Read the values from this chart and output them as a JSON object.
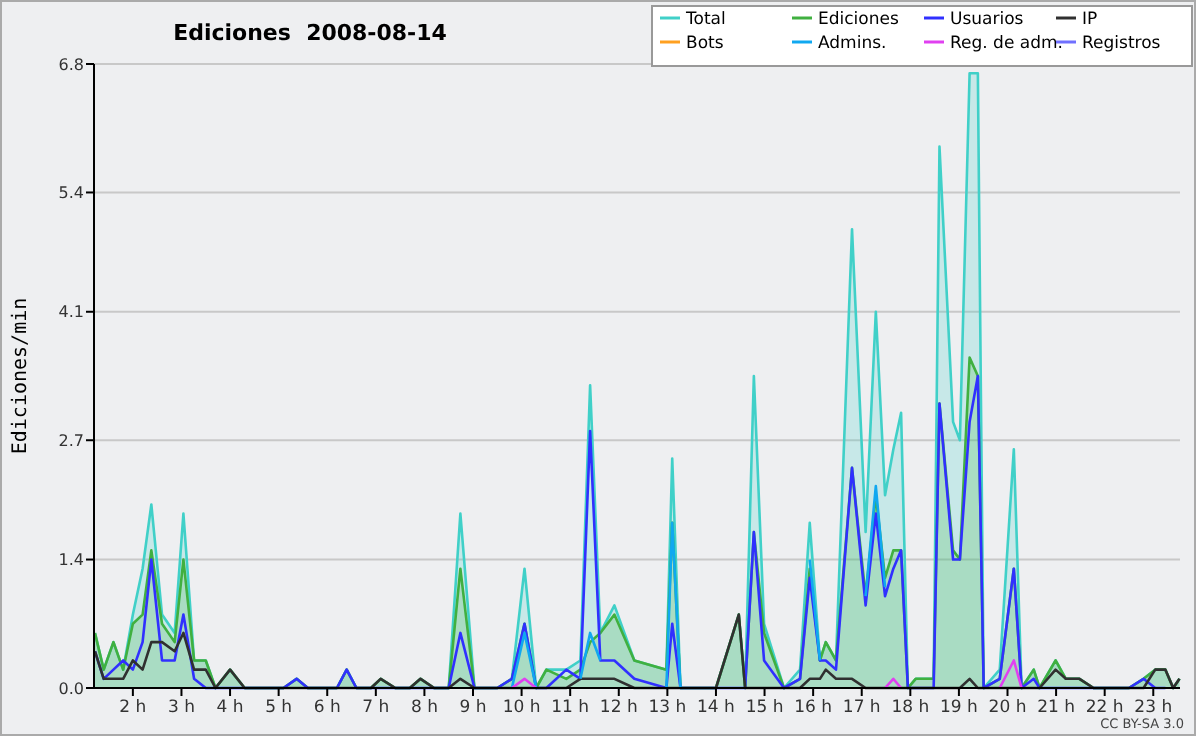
{
  "chart_data": {
    "type": "line",
    "title": "Ediciones  2008-08-14",
    "ylabel": "Ediciones/min",
    "x": [
      1.22,
      1.4,
      1.6,
      1.8,
      2.0,
      2.2,
      2.38,
      2.6,
      2.86,
      3.04,
      3.26,
      3.5,
      3.7,
      4.0,
      4.3,
      5.1,
      5.37,
      5.6,
      6.2,
      6.4,
      6.6,
      6.9,
      7.1,
      7.4,
      7.7,
      7.92,
      8.2,
      8.5,
      8.74,
      9.03,
      9.5,
      9.8,
      10.06,
      10.3,
      10.51,
      10.92,
      11.21,
      11.41,
      11.62,
      11.91,
      12.32,
      12.98,
      13.1,
      13.27,
      14.0,
      14.47,
      14.6,
      14.78,
      14.99,
      15.4,
      15.73,
      15.93,
      16.14,
      16.26,
      16.47,
      16.8,
      17.08,
      17.29,
      17.48,
      17.65,
      17.81,
      17.95,
      18.11,
      18.48,
      18.6,
      18.88,
      19.02,
      19.22,
      19.39,
      19.51,
      19.84,
      20.13,
      20.29,
      20.54,
      20.66,
      20.99,
      21.2,
      21.48,
      21.77,
      22.5,
      22.8,
      23.04,
      23.25,
      23.41,
      23.54
    ],
    "series": [
      {
        "name": "Total",
        "type": "area",
        "color": "#40d0c8",
        "values": [
          0.6,
          0.2,
          0.5,
          0.2,
          0.8,
          1.3,
          2.0,
          0.8,
          0.6,
          1.9,
          0.3,
          0.3,
          0,
          0.2,
          0,
          0,
          0.1,
          0,
          0,
          0.2,
          0,
          0,
          0.1,
          0,
          0,
          0.1,
          0,
          0,
          1.9,
          0,
          0,
          0.1,
          1.3,
          0,
          0.2,
          0.2,
          0.3,
          3.3,
          0.6,
          0.9,
          0.3,
          0.2,
          2.5,
          0,
          0,
          0.8,
          0,
          3.4,
          0.7,
          0,
          0.2,
          1.8,
          0.3,
          0.5,
          0.3,
          5.0,
          1.7,
          4.1,
          2.1,
          2.6,
          3.0,
          0,
          0.1,
          0.1,
          5.9,
          2.9,
          2.7,
          6.7,
          6.7,
          0,
          0.2,
          2.6,
          0,
          0.2,
          0,
          0.3,
          0.1,
          0.1,
          0,
          0,
          0.1,
          0.2,
          0.2,
          0,
          0.1
        ]
      },
      {
        "name": "Ediciones",
        "type": "area",
        "color": "#40b040",
        "values": [
          0.6,
          0.2,
          0.5,
          0.2,
          0.7,
          0.8,
          1.5,
          0.7,
          0.5,
          1.4,
          0.3,
          0.3,
          0,
          0.2,
          0,
          0,
          0.1,
          0,
          0,
          0.2,
          0,
          0,
          0.1,
          0,
          0,
          0.1,
          0,
          0,
          1.3,
          0,
          0,
          0.1,
          0.7,
          0,
          0.2,
          0.1,
          0.2,
          0.5,
          0.6,
          0.8,
          0.3,
          0.2,
          1.8,
          0,
          0,
          0.8,
          0,
          1.7,
          0.6,
          0,
          0.1,
          1.3,
          0.3,
          0.5,
          0.3,
          2.4,
          1.0,
          2.1,
          1.2,
          1.5,
          1.5,
          0,
          0.1,
          0.1,
          3.1,
          1.5,
          1.4,
          3.6,
          3.4,
          0,
          0.1,
          1.3,
          0,
          0.2,
          0,
          0.3,
          0.1,
          0.1,
          0,
          0,
          0.1,
          0.2,
          0.2,
          0,
          0.1
        ]
      },
      {
        "name": "Usuarios",
        "color": "#3030ff",
        "values": [
          0.4,
          0.1,
          0.2,
          0.3,
          0.2,
          0.5,
          1.4,
          0.3,
          0.3,
          0.8,
          0.1,
          0,
          0,
          0,
          0,
          0,
          0.1,
          0,
          0,
          0.2,
          0,
          0,
          0,
          0,
          0,
          0,
          0,
          0,
          0.6,
          0,
          0,
          0.1,
          0.7,
          0,
          0,
          0.2,
          0.1,
          2.8,
          0.3,
          0.3,
          0.1,
          0,
          0.7,
          0,
          0,
          0,
          0,
          1.7,
          0.3,
          0,
          0.1,
          1.2,
          0.3,
          0.3,
          0.2,
          2.4,
          0.9,
          1.9,
          1.0,
          1.3,
          1.5,
          0,
          0,
          0,
          3.1,
          1.4,
          1.4,
          2.9,
          3.4,
          0,
          0.1,
          1.3,
          0,
          0.1,
          0,
          0,
          0,
          0,
          0,
          0,
          0.1,
          0,
          0,
          null,
          null
        ]
      },
      {
        "name": "IP",
        "color": "#303030",
        "values": [
          0.4,
          0.1,
          0.1,
          0.1,
          0.3,
          0.2,
          0.5,
          0.5,
          0.4,
          0.6,
          0.2,
          0.2,
          0,
          0.2,
          0,
          0,
          0,
          0,
          0,
          0,
          0,
          0,
          0.1,
          0,
          0,
          0.1,
          0,
          0,
          0.1,
          0,
          0,
          0,
          0,
          0,
          0,
          0,
          0.1,
          0.1,
          0.1,
          0.1,
          0,
          0,
          0,
          0,
          0,
          0.8,
          0,
          0,
          0,
          0,
          0,
          0.1,
          0.1,
          0.2,
          0.1,
          0.1,
          0,
          0,
          0,
          0,
          0,
          0,
          0,
          0,
          0,
          0,
          0,
          0.1,
          0,
          0,
          0,
          0,
          0,
          0,
          0,
          0.2,
          0.1,
          0.1,
          0,
          0,
          0,
          0.2,
          0.2,
          0,
          0.1
        ]
      },
      {
        "name": "Bots",
        "color": "#ffa020",
        "values": [
          null,
          null,
          null,
          null,
          null,
          null,
          null,
          null,
          null,
          null,
          null,
          null,
          null,
          null,
          null,
          null,
          null,
          null,
          null,
          null,
          null,
          null,
          null,
          null,
          null,
          null,
          null,
          null,
          null,
          null,
          null,
          null,
          null,
          null,
          null,
          null,
          null,
          null,
          null,
          null,
          null,
          null,
          null,
          null,
          null,
          null,
          null,
          null,
          null,
          null,
          null,
          null,
          null,
          null,
          null,
          null,
          null,
          null,
          null,
          null,
          null,
          null,
          null,
          null,
          null,
          null,
          null,
          null,
          null,
          null,
          null,
          null,
          null,
          null,
          null,
          null,
          null,
          null,
          null,
          null,
          null,
          null,
          null,
          null,
          null
        ]
      },
      {
        "name": "Admins.",
        "color": "#10a8f0",
        "x": [
          9.8,
          10.06,
          10.3,
          11.0,
          11.21,
          11.41,
          11.62,
          12.5,
          12.98,
          13.1,
          13.27,
          15.0,
          15.93,
          16.14,
          16.6,
          17.08,
          17.29,
          17.48
        ],
        "values": [
          0,
          0.6,
          0,
          null,
          0.1,
          0.6,
          0.3,
          null,
          0,
          1.8,
          0,
          null,
          1.4,
          0.3,
          null,
          1.0,
          2.2,
          1.1
        ]
      },
      {
        "name": "Reg. de adm.",
        "color": "#e040f0",
        "x": [
          9.8,
          10.06,
          10.3,
          15,
          17.48,
          17.65,
          17.81,
          19,
          19.84,
          20.13,
          20.29
        ],
        "values": [
          0,
          0.1,
          0,
          null,
          0,
          0.1,
          0,
          null,
          0,
          0.3,
          0
        ]
      },
      {
        "name": "Registros",
        "color": "#7070ff",
        "values": [
          null,
          null,
          null,
          null,
          null,
          null,
          null,
          null,
          null,
          null,
          null,
          null,
          null,
          null,
          null,
          null,
          null,
          null,
          null,
          null,
          null,
          null,
          null,
          null,
          null,
          null,
          null,
          null,
          null,
          null,
          null,
          null,
          null,
          null,
          null,
          null,
          null,
          null,
          null,
          null,
          null,
          null,
          null,
          null,
          null,
          null,
          null,
          null,
          null,
          null,
          null,
          null,
          null,
          null,
          null,
          null,
          null,
          null,
          null,
          null,
          null,
          null,
          null,
          null,
          null,
          null,
          null,
          null,
          null,
          null,
          null,
          null,
          null,
          null,
          null,
          null,
          null,
          null,
          null,
          null,
          null,
          null,
          null,
          null,
          null
        ]
      }
    ],
    "xlim": [
      1.2,
      23.55
    ],
    "xticks": [
      {
        "value": 2,
        "label": "2 h"
      },
      {
        "value": 3,
        "label": "3 h"
      },
      {
        "value": 4,
        "label": "4 h"
      },
      {
        "value": 5,
        "label": "5 h"
      },
      {
        "value": 6,
        "label": "6 h"
      },
      {
        "value": 7,
        "label": "7 h"
      },
      {
        "value": 8,
        "label": "8 h"
      },
      {
        "value": 9,
        "label": "9 h"
      },
      {
        "value": 10,
        "label": "10 h"
      },
      {
        "value": 11,
        "label": "11 h"
      },
      {
        "value": 12,
        "label": "12 h"
      },
      {
        "value": 13,
        "label": "13 h"
      },
      {
        "value": 14,
        "label": "14 h"
      },
      {
        "value": 15,
        "label": "15 h"
      },
      {
        "value": 16,
        "label": "16 h"
      },
      {
        "value": 17,
        "label": "17 h"
      },
      {
        "value": 18,
        "label": "18 h"
      },
      {
        "value": 19,
        "label": "19 h"
      },
      {
        "value": 20,
        "label": "20 h"
      },
      {
        "value": 21,
        "label": "21 h"
      },
      {
        "value": 22,
        "label": "22 h"
      },
      {
        "value": 23,
        "label": "23 h"
      }
    ],
    "ylim": [
      0,
      6.8
    ],
    "yticks": [
      {
        "value": 0,
        "label": "0.0"
      },
      1.4,
      2.7,
      4.1,
      5.4,
      6.8
    ],
    "grid": "y",
    "legend": "top right",
    "annotations": [
      "CC BY-SA 3.0"
    ]
  }
}
